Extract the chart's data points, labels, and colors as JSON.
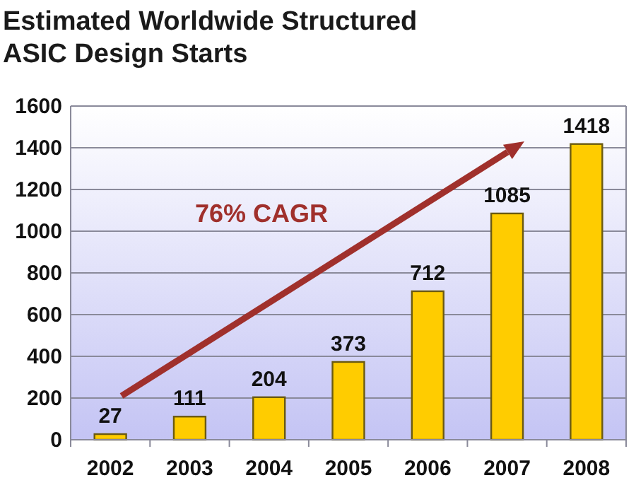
{
  "chart_data": {
    "type": "bar",
    "title": "Estimated Worldwide Structured ASIC Design Starts",
    "categories": [
      "2002",
      "2003",
      "2004",
      "2005",
      "2006",
      "2007",
      "2008"
    ],
    "values": [
      27,
      111,
      204,
      373,
      712,
      1085,
      1418
    ],
    "color": "#ffcc00",
    "ylim": [
      0,
      1600
    ],
    "yticks": [
      0,
      200,
      400,
      600,
      800,
      1000,
      1200,
      1400,
      1600
    ],
    "grid": "y",
    "data_labels": true,
    "annotations": [
      "76% CAGR"
    ]
  }
}
